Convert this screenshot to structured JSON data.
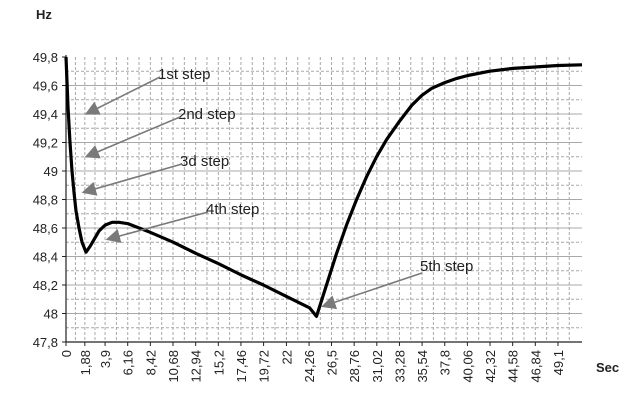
{
  "chart_data": {
    "type": "line",
    "ylabel": "Hz",
    "xlabel": "Sec",
    "ylim": [
      47.8,
      49.8
    ],
    "xlim": [
      0,
      51.5
    ],
    "grid": true,
    "y_ticks": [
      "47,8",
      "48",
      "48,2",
      "48,4",
      "48,6",
      "48,8",
      "49",
      "49,2",
      "49,4",
      "49,6",
      "49,8"
    ],
    "x_ticks": [
      {
        "value": 0,
        "label": "0"
      },
      {
        "value": 1.88,
        "label": "1,88"
      },
      {
        "value": 3.9,
        "label": "3,9"
      },
      {
        "value": 6.16,
        "label": "6,16"
      },
      {
        "value": 8.42,
        "label": "8,42"
      },
      {
        "value": 10.68,
        "label": "10,68"
      },
      {
        "value": 12.94,
        "label": "12,94"
      },
      {
        "value": 15.2,
        "label": "15,2"
      },
      {
        "value": 17.46,
        "label": "17,46"
      },
      {
        "value": 19.72,
        "label": "19,72"
      },
      {
        "value": 22,
        "label": "22"
      },
      {
        "value": 24.26,
        "label": "24,26"
      },
      {
        "value": 26.5,
        "label": "26,5"
      },
      {
        "value": 28.76,
        "label": "28,76"
      },
      {
        "value": 31.02,
        "label": "31,02"
      },
      {
        "value": 33.28,
        "label": "33,28"
      },
      {
        "value": 35.54,
        "label": "35,54"
      },
      {
        "value": 37.8,
        "label": "37,8"
      },
      {
        "value": 40.06,
        "label": "40,06"
      },
      {
        "value": 42.32,
        "label": "42,32"
      },
      {
        "value": 44.58,
        "label": "44,58"
      },
      {
        "value": 46.84,
        "label": "46,84"
      },
      {
        "value": 49.1,
        "label": "49,1"
      }
    ],
    "series": [
      {
        "values": [
          [
            0,
            49.8
          ],
          [
            0.2,
            49.45
          ],
          [
            0.4,
            49.2
          ],
          [
            0.6,
            49.0
          ],
          [
            0.8,
            48.85
          ],
          [
            1.0,
            48.72
          ],
          [
            1.3,
            48.6
          ],
          [
            1.6,
            48.5
          ],
          [
            2.0,
            48.43
          ],
          [
            2.4,
            48.47
          ],
          [
            2.8,
            48.52
          ],
          [
            3.3,
            48.58
          ],
          [
            3.9,
            48.62
          ],
          [
            4.6,
            48.64
          ],
          [
            5.3,
            48.64
          ],
          [
            6.2,
            48.63
          ],
          [
            8.4,
            48.57
          ],
          [
            10.7,
            48.5
          ],
          [
            13.0,
            48.42
          ],
          [
            15.2,
            48.35
          ],
          [
            17.5,
            48.27
          ],
          [
            19.7,
            48.2
          ],
          [
            22.0,
            48.12
          ],
          [
            24.3,
            48.04
          ],
          [
            25.0,
            47.98
          ],
          [
            26.0,
            48.2
          ],
          [
            27.0,
            48.42
          ],
          [
            28.0,
            48.62
          ],
          [
            29.0,
            48.8
          ],
          [
            30.0,
            48.96
          ],
          [
            31.0,
            49.1
          ],
          [
            32.0,
            49.22
          ],
          [
            33.3,
            49.35
          ],
          [
            34.5,
            49.46
          ],
          [
            35.5,
            49.53
          ],
          [
            36.5,
            49.58
          ],
          [
            37.8,
            49.62
          ],
          [
            39.0,
            49.65
          ],
          [
            40.1,
            49.67
          ],
          [
            42.3,
            49.7
          ],
          [
            44.6,
            49.72
          ],
          [
            46.8,
            49.73
          ],
          [
            49.1,
            49.74
          ],
          [
            51.5,
            49.745
          ]
        ]
      }
    ],
    "annotations": [
      {
        "text": "1st step",
        "x": 2.0,
        "y": 49.4
      },
      {
        "text": "2nd step",
        "x": 2.0,
        "y": 49.1
      },
      {
        "text": "3d step",
        "x": 1.7,
        "y": 48.85
      },
      {
        "text": "4th step",
        "x": 4.1,
        "y": 48.52
      },
      {
        "text": "5th step",
        "x": 25.6,
        "y": 48.05
      }
    ]
  }
}
